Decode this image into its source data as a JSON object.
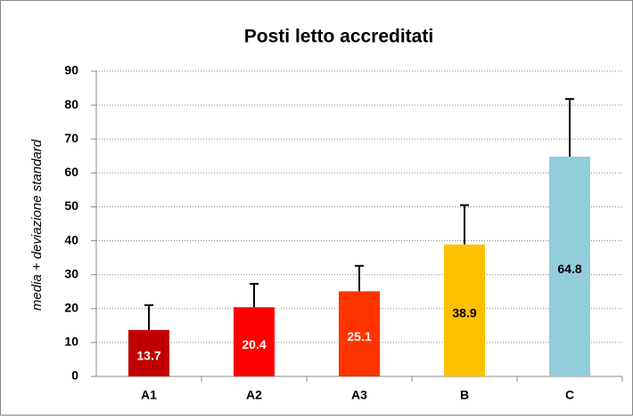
{
  "chart_data": {
    "type": "bar",
    "title": "Posti letto accreditati",
    "y_label": "media + deviazione standard",
    "categories": [
      "A1",
      "A2",
      "A3",
      "B",
      "C"
    ],
    "values": [
      13.7,
      20.4,
      25.1,
      38.9,
      64.8
    ],
    "errors": [
      7.3,
      6.9,
      7.5,
      11.6,
      17.0
    ],
    "colors": [
      "#c00000",
      "#ff0000",
      "#ff3300",
      "#ffc000",
      "#92cddc"
    ],
    "label_colors": [
      "#ffffff",
      "#ffffff",
      "#ffffff",
      "#000000",
      "#000000"
    ],
    "ylim": [
      0,
      90
    ],
    "yticks": [
      0,
      10,
      20,
      30,
      40,
      50,
      60,
      70,
      80,
      90
    ],
    "grid": true
  }
}
